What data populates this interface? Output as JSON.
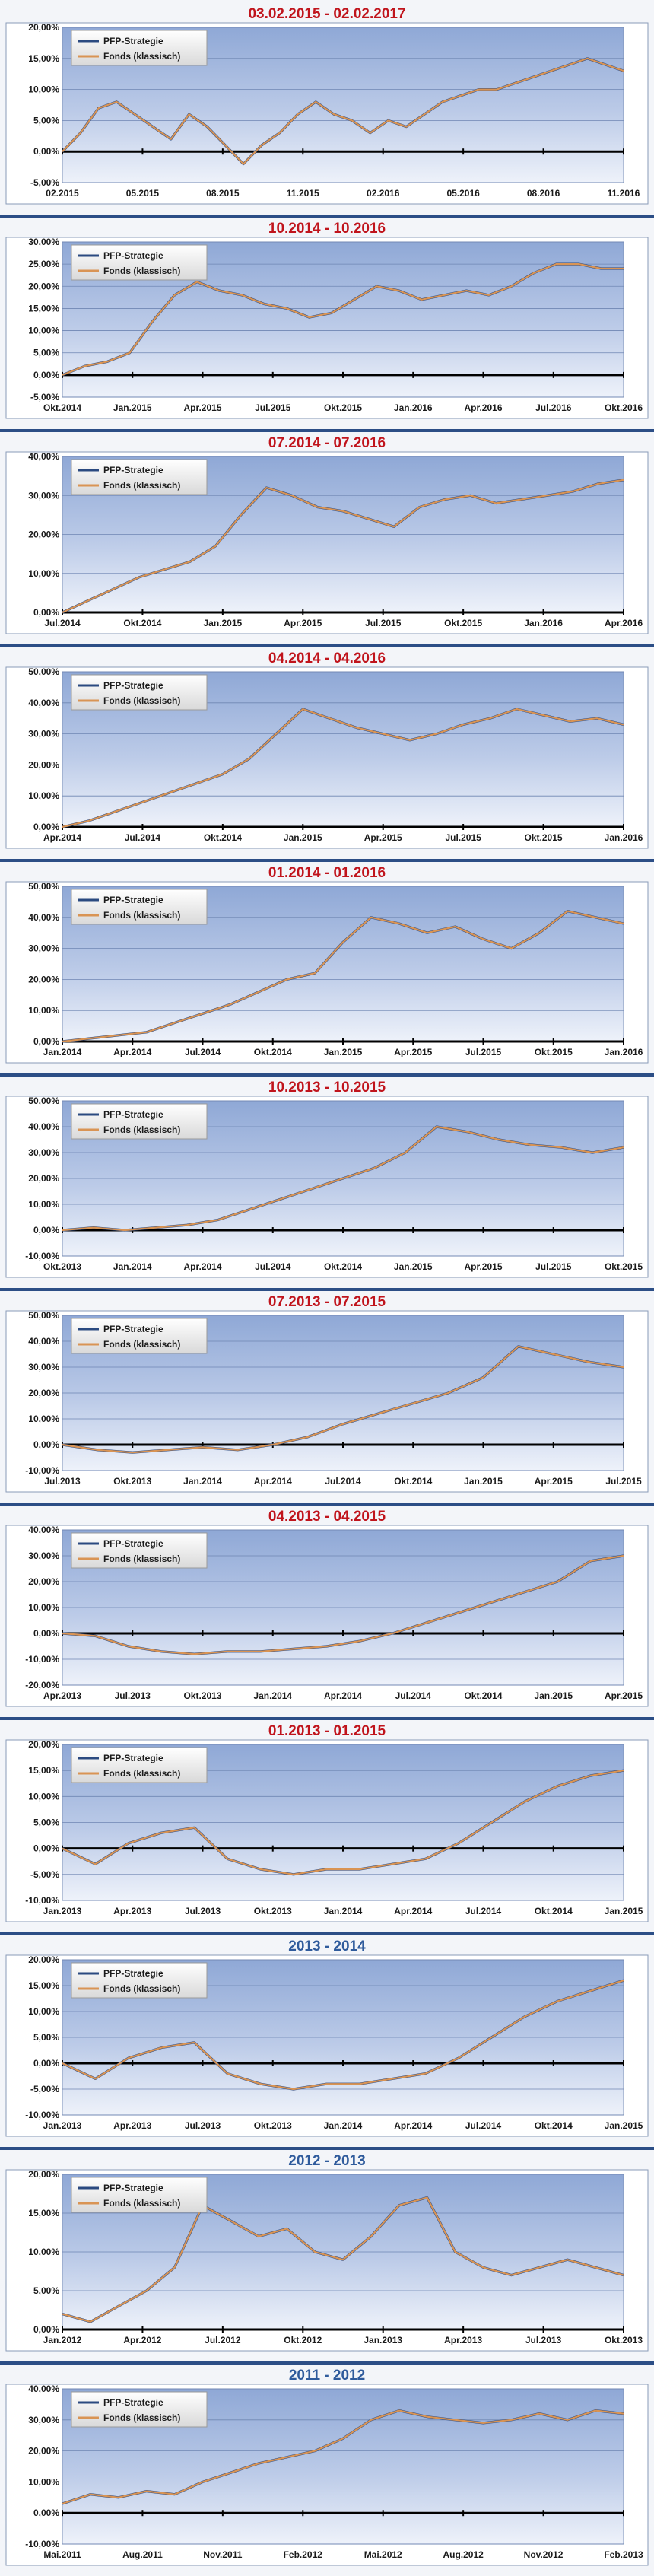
{
  "colors": {
    "accent_title_red": "#c0141c",
    "accent_title_blue": "#2f5b9c",
    "separator": "#2c4e86",
    "series_strategy": "#2b4a80",
    "series_fund": "#d99454"
  },
  "chart_data": [
    {
      "type": "line",
      "title": "03.02.2015 - 02.02.2017",
      "title_color": "#c0141c",
      "ylim": [
        -5,
        20
      ],
      "yticks": [
        "-5,00%",
        "0,00%",
        "5,00%",
        "10,00%",
        "15,00%",
        "20,00%"
      ],
      "yvals": [
        -5,
        0,
        5,
        10,
        15,
        20
      ],
      "xticks": [
        "02.2015",
        "05.2015",
        "08.2015",
        "11.2015",
        "02.2016",
        "05.2016",
        "08.2016",
        "11.2016"
      ],
      "grid": true,
      "legend_position": "top-left",
      "series": [
        {
          "name": "PFP-Strategie",
          "values": [
            0,
            3,
            7,
            8,
            6,
            4,
            2,
            6,
            4,
            1,
            -2,
            1,
            3,
            6,
            8,
            6,
            5,
            3,
            5,
            4,
            6,
            8,
            9,
            10,
            10,
            11,
            12,
            13,
            14,
            15,
            14,
            13
          ]
        },
        {
          "name": "Fonds (klassisch)",
          "values": [
            0,
            3,
            7,
            8,
            6,
            4,
            2,
            6,
            4,
            1,
            -2,
            1,
            3,
            6,
            8,
            6,
            5,
            3,
            5,
            4,
            6,
            8,
            9,
            10,
            10,
            11,
            12,
            13,
            14,
            15,
            14,
            13
          ]
        }
      ]
    },
    {
      "type": "line",
      "title": "10.2014 - 10.2016",
      "title_color": "#c0141c",
      "ylim": [
        -5,
        30
      ],
      "yticks": [
        "-5,00%",
        "0,00%",
        "5,00%",
        "10,00%",
        "15,00%",
        "20,00%",
        "25,00%",
        "30,00%"
      ],
      "yvals": [
        -5,
        0,
        5,
        10,
        15,
        20,
        25,
        30
      ],
      "xticks": [
        "Okt.2014",
        "Jan.2015",
        "Apr.2015",
        "Jul.2015",
        "Okt.2015",
        "Jan.2016",
        "Apr.2016",
        "Jul.2016",
        "Okt.2016"
      ],
      "grid": true,
      "legend_position": "top-left",
      "series": [
        {
          "name": "PFP-Strategie",
          "values": [
            0,
            2,
            3,
            5,
            12,
            18,
            21,
            19,
            18,
            16,
            15,
            13,
            14,
            17,
            20,
            19,
            17,
            18,
            19,
            18,
            20,
            23,
            25,
            25,
            24,
            24
          ]
        },
        {
          "name": "Fonds (klassisch)",
          "values": [
            0,
            2,
            3,
            5,
            12,
            18,
            21,
            19,
            18,
            16,
            15,
            13,
            14,
            17,
            20,
            19,
            17,
            18,
            19,
            18,
            20,
            23,
            25,
            25,
            24,
            24
          ]
        }
      ]
    },
    {
      "type": "line",
      "title": "07.2014 - 07.2016",
      "title_color": "#c0141c",
      "ylim": [
        0,
        40
      ],
      "yticks": [
        "0,00%",
        "10,00%",
        "20,00%",
        "30,00%",
        "40,00%"
      ],
      "yvals": [
        0,
        10,
        20,
        30,
        40
      ],
      "xticks": [
        "Jul.2014",
        "Okt.2014",
        "Jan.2015",
        "Apr.2015",
        "Jul.2015",
        "Okt.2015",
        "Jan.2016",
        "Apr.2016"
      ],
      "grid": true,
      "legend_position": "top-left",
      "series": [
        {
          "name": "PFP-Strategie",
          "values": [
            0,
            3,
            6,
            9,
            11,
            13,
            17,
            25,
            32,
            30,
            27,
            26,
            24,
            22,
            27,
            29,
            30,
            28,
            29,
            30,
            31,
            33,
            34
          ]
        },
        {
          "name": "Fonds (klassisch)",
          "values": [
            0,
            3,
            6,
            9,
            11,
            13,
            17,
            25,
            32,
            30,
            27,
            26,
            24,
            22,
            27,
            29,
            30,
            28,
            29,
            30,
            31,
            33,
            34
          ]
        }
      ]
    },
    {
      "type": "line",
      "title": "04.2014 - 04.2016",
      "title_color": "#c0141c",
      "ylim": [
        0,
        50
      ],
      "yticks": [
        "0,00%",
        "10,00%",
        "20,00%",
        "30,00%",
        "40,00%",
        "50,00%"
      ],
      "yvals": [
        0,
        10,
        20,
        30,
        40,
        50
      ],
      "xticks": [
        "Apr.2014",
        "Jul.2014",
        "Okt.2014",
        "Jan.2015",
        "Apr.2015",
        "Jul.2015",
        "Okt.2015",
        "Jan.2016"
      ],
      "grid": true,
      "legend_position": "top-left",
      "series": [
        {
          "name": "PFP-Strategie",
          "values": [
            0,
            2,
            5,
            8,
            11,
            14,
            17,
            22,
            30,
            38,
            35,
            32,
            30,
            28,
            30,
            33,
            35,
            38,
            36,
            34,
            35,
            33
          ]
        },
        {
          "name": "Fonds (klassisch)",
          "values": [
            0,
            2,
            5,
            8,
            11,
            14,
            17,
            22,
            30,
            38,
            35,
            32,
            30,
            28,
            30,
            33,
            35,
            38,
            36,
            34,
            35,
            33
          ]
        }
      ]
    },
    {
      "type": "line",
      "title": "01.2014 - 01.2016",
      "title_color": "#c0141c",
      "ylim": [
        0,
        50
      ],
      "yticks": [
        "0,00%",
        "10,00%",
        "20,00%",
        "30,00%",
        "40,00%",
        "50,00%"
      ],
      "yvals": [
        0,
        10,
        20,
        30,
        40,
        50
      ],
      "xticks": [
        "Jan.2014",
        "Apr.2014",
        "Jul.2014",
        "Okt.2014",
        "Jan.2015",
        "Apr.2015",
        "Jul.2015",
        "Okt.2015",
        "Jan.2016"
      ],
      "grid": true,
      "legend_position": "top-left",
      "series": [
        {
          "name": "PFP-Strategie",
          "values": [
            0,
            1,
            2,
            3,
            6,
            9,
            12,
            16,
            20,
            22,
            32,
            40,
            38,
            35,
            37,
            33,
            30,
            35,
            42,
            40,
            38
          ]
        },
        {
          "name": "Fonds (klassisch)",
          "values": [
            0,
            1,
            2,
            3,
            6,
            9,
            12,
            16,
            20,
            22,
            32,
            40,
            38,
            35,
            37,
            33,
            30,
            35,
            42,
            40,
            38
          ]
        }
      ]
    },
    {
      "type": "line",
      "title": "10.2013 - 10.2015",
      "title_color": "#c0141c",
      "ylim": [
        -10,
        50
      ],
      "yticks": [
        "-10,00%",
        "0,00%",
        "10,00%",
        "20,00%",
        "30,00%",
        "40,00%",
        "50,00%"
      ],
      "yvals": [
        -10,
        0,
        10,
        20,
        30,
        40,
        50
      ],
      "xticks": [
        "Okt.2013",
        "Jan.2014",
        "Apr.2014",
        "Jul.2014",
        "Okt.2014",
        "Jan.2015",
        "Apr.2015",
        "Jul.2015",
        "Okt.2015"
      ],
      "grid": true,
      "legend_position": "top-left",
      "series": [
        {
          "name": "PFP-Strategie",
          "values": [
            0,
            1,
            0,
            1,
            2,
            4,
            8,
            12,
            16,
            20,
            24,
            30,
            40,
            38,
            35,
            33,
            32,
            30,
            32
          ]
        },
        {
          "name": "Fonds (klassisch)",
          "values": [
            0,
            1,
            0,
            1,
            2,
            4,
            8,
            12,
            16,
            20,
            24,
            30,
            40,
            38,
            35,
            33,
            32,
            30,
            32
          ]
        }
      ]
    },
    {
      "type": "line",
      "title": "07.2013 - 07.2015",
      "title_color": "#c0141c",
      "ylim": [
        -10,
        50
      ],
      "yticks": [
        "-10,00%",
        "0,00%",
        "10,00%",
        "20,00%",
        "30,00%",
        "40,00%",
        "50,00%"
      ],
      "yvals": [
        -10,
        0,
        10,
        20,
        30,
        40,
        50
      ],
      "xticks": [
        "Jul.2013",
        "Okt.2013",
        "Jan.2014",
        "Apr.2014",
        "Jul.2014",
        "Okt.2014",
        "Jan.2015",
        "Apr.2015",
        "Jul.2015"
      ],
      "grid": true,
      "legend_position": "top-left",
      "series": [
        {
          "name": "PFP-Strategie",
          "values": [
            0,
            -2,
            -3,
            -2,
            -1,
            -2,
            0,
            3,
            8,
            12,
            16,
            20,
            26,
            38,
            35,
            32,
            30
          ]
        },
        {
          "name": "Fonds (klassisch)",
          "values": [
            0,
            -2,
            -3,
            -2,
            -1,
            -2,
            0,
            3,
            8,
            12,
            16,
            20,
            26,
            38,
            35,
            32,
            30
          ]
        }
      ]
    },
    {
      "type": "line",
      "title": "04.2013 - 04.2015",
      "title_color": "#c0141c",
      "ylim": [
        -20,
        40
      ],
      "yticks": [
        "-20,00%",
        "-10,00%",
        "0,00%",
        "10,00%",
        "20,00%",
        "30,00%",
        "40,00%"
      ],
      "yvals": [
        -20,
        -10,
        0,
        10,
        20,
        30,
        40
      ],
      "xticks": [
        "Apr.2013",
        "Jul.2013",
        "Okt.2013",
        "Jan.2014",
        "Apr.2014",
        "Jul.2014",
        "Okt.2014",
        "Jan.2015",
        "Apr.2015"
      ],
      "grid": true,
      "legend_position": "top-left",
      "series": [
        {
          "name": "PFP-Strategie",
          "values": [
            0,
            -1,
            -5,
            -7,
            -8,
            -7,
            -7,
            -6,
            -5,
            -3,
            0,
            4,
            8,
            12,
            16,
            20,
            28,
            30
          ]
        },
        {
          "name": "Fonds (klassisch)",
          "values": [
            0,
            -1,
            -5,
            -7,
            -8,
            -7,
            -7,
            -6,
            -5,
            -3,
            0,
            4,
            8,
            12,
            16,
            20,
            28,
            30
          ]
        }
      ]
    },
    {
      "type": "line",
      "title": "01.2013 - 01.2015",
      "title_color": "#c0141c",
      "ylim": [
        -10,
        20
      ],
      "yticks": [
        "-10,00%",
        "-5,00%",
        "0,00%",
        "5,00%",
        "10,00%",
        "15,00%",
        "20,00%"
      ],
      "yvals": [
        -10,
        -5,
        0,
        5,
        10,
        15,
        20
      ],
      "xticks": [
        "Jan.2013",
        "Apr.2013",
        "Jul.2013",
        "Okt.2013",
        "Jan.2014",
        "Apr.2014",
        "Jul.2014",
        "Okt.2014",
        "Jan.2015"
      ],
      "grid": true,
      "legend_position": "top-left",
      "series": [
        {
          "name": "PFP-Strategie",
          "values": [
            0,
            -3,
            1,
            3,
            4,
            -2,
            -4,
            -5,
            -4,
            -4,
            -3,
            -2,
            1,
            5,
            9,
            12,
            14,
            15
          ]
        },
        {
          "name": "Fonds (klassisch)",
          "values": [
            0,
            -3,
            1,
            3,
            4,
            -2,
            -4,
            -5,
            -4,
            -4,
            -3,
            -2,
            1,
            5,
            9,
            12,
            14,
            15
          ]
        }
      ]
    },
    {
      "type": "line",
      "title": "2013 - 2014",
      "title_color": "#2f5b9c",
      "ylim": [
        -10,
        20
      ],
      "yticks": [
        "-10,00%",
        "-5,00%",
        "0,00%",
        "5,00%",
        "10,00%",
        "15,00%",
        "20,00%"
      ],
      "yvals": [
        -10,
        -5,
        0,
        5,
        10,
        15,
        20
      ],
      "xticks": [
        "Jan.2013",
        "Apr.2013",
        "Jul.2013",
        "Okt.2013",
        "Jan.2014",
        "Apr.2014",
        "Jul.2014",
        "Okt.2014",
        "Jan.2015"
      ],
      "grid": true,
      "legend_position": "top-left",
      "series": [
        {
          "name": "PFP-Strategie",
          "values": [
            0,
            -3,
            1,
            3,
            4,
            -2,
            -4,
            -5,
            -4,
            -4,
            -3,
            -2,
            1,
            5,
            9,
            12,
            14,
            16
          ]
        },
        {
          "name": "Fonds (klassisch)",
          "values": [
            0,
            -3,
            1,
            3,
            4,
            -2,
            -4,
            -5,
            -4,
            -4,
            -3,
            -2,
            1,
            5,
            9,
            12,
            14,
            16
          ]
        }
      ]
    },
    {
      "type": "line",
      "title": "2012 - 2013",
      "title_color": "#2f5b9c",
      "ylim": [
        0,
        20
      ],
      "yticks": [
        "0,00%",
        "5,00%",
        "10,00%",
        "15,00%",
        "20,00%"
      ],
      "yvals": [
        0,
        5,
        10,
        15,
        20
      ],
      "xticks": [
        "Jan.2012",
        "Apr.2012",
        "Jul.2012",
        "Okt.2012",
        "Jan.2013",
        "Apr.2013",
        "Jul.2013",
        "Okt.2013"
      ],
      "grid": true,
      "legend_position": "top-left",
      "series": [
        {
          "name": "PFP-Strategie",
          "values": [
            2,
            1,
            3,
            5,
            8,
            16,
            14,
            12,
            13,
            10,
            9,
            12,
            16,
            17,
            10,
            8,
            7,
            8,
            9,
            8,
            7
          ]
        },
        {
          "name": "Fonds (klassisch)",
          "values": [
            2,
            1,
            3,
            5,
            8,
            16,
            14,
            12,
            13,
            10,
            9,
            12,
            16,
            17,
            10,
            8,
            7,
            8,
            9,
            8,
            7
          ]
        }
      ]
    },
    {
      "type": "line",
      "title": "2011 - 2012",
      "title_color": "#2f5b9c",
      "ylim": [
        -10,
        40
      ],
      "yticks": [
        "-10,00%",
        "0,00%",
        "10,00%",
        "20,00%",
        "30,00%",
        "40,00%"
      ],
      "yvals": [
        -10,
        0,
        10,
        20,
        30,
        40
      ],
      "xticks": [
        "Mai.2011",
        "Aug.2011",
        "Nov.2011",
        "Feb.2012",
        "Mai.2012",
        "Aug.2012",
        "Nov.2012",
        "Feb.2013"
      ],
      "grid": true,
      "legend_position": "top-left",
      "series": [
        {
          "name": "PFP-Strategie",
          "values": [
            3,
            6,
            5,
            7,
            6,
            10,
            13,
            16,
            18,
            20,
            24,
            30,
            33,
            31,
            30,
            29,
            30,
            32,
            30,
            33,
            32
          ]
        },
        {
          "name": "Fonds (klassisch)",
          "values": [
            3,
            6,
            5,
            7,
            6,
            10,
            13,
            16,
            18,
            20,
            24,
            30,
            33,
            31,
            30,
            29,
            30,
            32,
            30,
            33,
            32
          ]
        }
      ]
    }
  ]
}
